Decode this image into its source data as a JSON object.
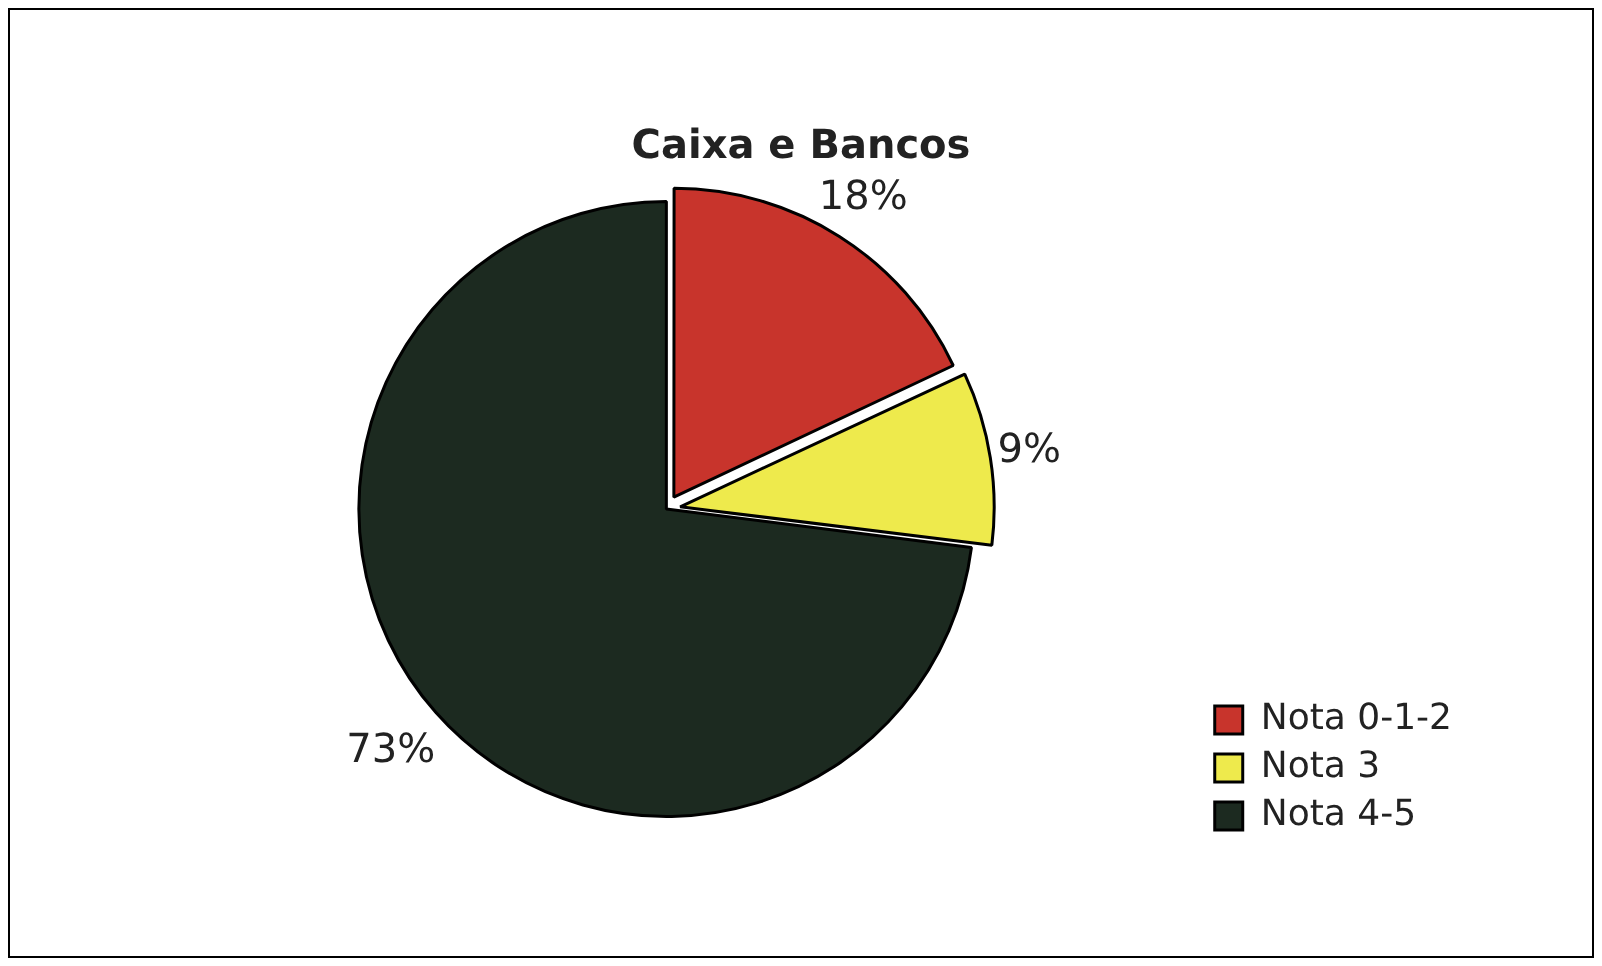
{
  "chart_data": {
    "type": "pie",
    "title": "Caixa e Bancos",
    "categories": [
      "Nota 0-1-2",
      "Nota 3",
      "Nota 4-5"
    ],
    "values": [
      18,
      9,
      73
    ],
    "colors": [
      "#c8342c",
      "#eeea4c",
      "#1c2a20"
    ],
    "value_labels": [
      "18%",
      "9%",
      "73%"
    ],
    "legend": "bottom right"
  }
}
